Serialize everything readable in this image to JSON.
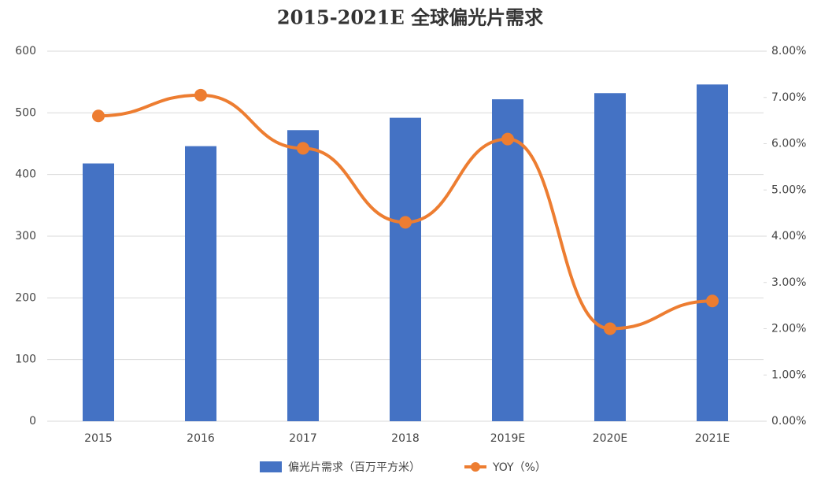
{
  "chart_data": {
    "type": "bar-line",
    "title": "2015-2021E 全球偏光片需求",
    "categories": [
      "2015",
      "2016",
      "2017",
      "2018",
      "2019E",
      "2020E",
      "2021E"
    ],
    "series": [
      {
        "name": "偏光片需求（百万平方米）",
        "type": "bar",
        "color": "#4472c4",
        "values": [
          418,
          446,
          472,
          492,
          522,
          532,
          546
        ]
      },
      {
        "name": "YOY（%）",
        "type": "line",
        "axis": "y2",
        "color": "#ed7d31",
        "values": [
          6.6,
          7.05,
          5.9,
          4.3,
          6.1,
          2.0,
          2.6
        ]
      }
    ],
    "ylim": [
      0,
      600
    ],
    "yticks": [
      0,
      100,
      200,
      300,
      400,
      500,
      600
    ],
    "y2lim": [
      0,
      8
    ],
    "y2ticks": [
      {
        "value": 0,
        "label": "0.00%"
      },
      {
        "value": 1,
        "label": "1.00%"
      },
      {
        "value": 2,
        "label": "2.00%"
      },
      {
        "value": 3,
        "label": "3.00%"
      },
      {
        "value": 4,
        "label": "4.00%"
      },
      {
        "value": 5,
        "label": "5.00%"
      },
      {
        "value": 6,
        "label": "6.00%"
      },
      {
        "value": 7,
        "label": "7.00%"
      },
      {
        "value": 8,
        "label": "8.00%"
      }
    ],
    "grid": true
  }
}
